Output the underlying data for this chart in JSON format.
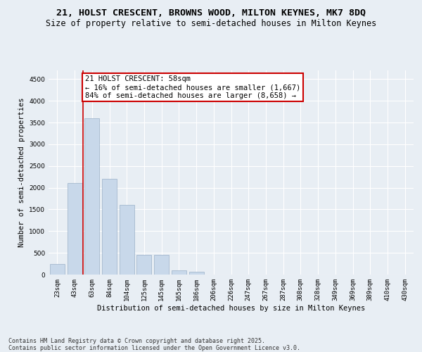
{
  "title_line1": "21, HOLST CRESCENT, BROWNS WOOD, MILTON KEYNES, MK7 8DQ",
  "title_line2": "Size of property relative to semi-detached houses in Milton Keynes",
  "xlabel": "Distribution of semi-detached houses by size in Milton Keynes",
  "ylabel": "Number of semi-detached properties",
  "categories": [
    "23sqm",
    "43sqm",
    "63sqm",
    "84sqm",
    "104sqm",
    "125sqm",
    "145sqm",
    "165sqm",
    "186sqm",
    "206sqm",
    "226sqm",
    "247sqm",
    "267sqm",
    "287sqm",
    "308sqm",
    "328sqm",
    "349sqm",
    "369sqm",
    "389sqm",
    "410sqm",
    "430sqm"
  ],
  "values": [
    250,
    2100,
    3600,
    2200,
    1600,
    450,
    450,
    100,
    60,
    0,
    0,
    0,
    0,
    0,
    0,
    0,
    0,
    0,
    0,
    0,
    0
  ],
  "bar_color": "#c8d8ea",
  "bar_edge_color": "#9ab0c8",
  "vline_color": "#cc0000",
  "annotation_text": "21 HOLST CRESCENT: 58sqm\n← 16% of semi-detached houses are smaller (1,667)\n84% of semi-detached houses are larger (8,658) →",
  "annotation_box_color": "#ffffff",
  "annotation_box_edge": "#cc0000",
  "ylim": [
    0,
    4700
  ],
  "yticks": [
    0,
    500,
    1000,
    1500,
    2000,
    2500,
    3000,
    3500,
    4000,
    4500
  ],
  "footnote": "Contains HM Land Registry data © Crown copyright and database right 2025.\nContains public sector information licensed under the Open Government Licence v3.0.",
  "bg_color": "#e8eef4",
  "title_fontsize": 9.5,
  "subtitle_fontsize": 8.5,
  "axis_label_fontsize": 7.5,
  "tick_fontsize": 6.5,
  "annotation_fontsize": 7.5,
  "footnote_fontsize": 6.0
}
